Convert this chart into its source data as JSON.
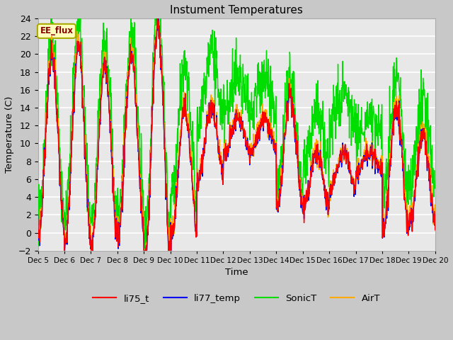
{
  "title": "Instument Temperatures",
  "xlabel": "Time",
  "ylabel": "Temperature (C)",
  "ylim": [
    -2,
    24
  ],
  "annotation_text": "EE_flux",
  "x_tick_labels": [
    "Dec 5",
    "Dec 6",
    "Dec 7",
    "Dec 8",
    "Dec 9",
    "Dec 10",
    "Dec 11",
    "Dec 12",
    "Dec 13",
    "Dec 14",
    "Dec 15",
    "Dec 16",
    "Dec 17",
    "Dec 18",
    "Dec 19",
    "Dec 20"
  ],
  "colors": {
    "li75_t": "#ff0000",
    "li77_temp": "#0000ee",
    "SonicT": "#00dd00",
    "AirT": "#ffaa00"
  },
  "legend_labels": [
    "li75_t",
    "li77_temp",
    "SonicT",
    "AirT"
  ],
  "fig_bg_color": "#c8c8c8",
  "plot_bg_color": "#e8e8e8",
  "grid_color": "#ffffff",
  "figsize": [
    6.4,
    4.8
  ],
  "dpi": 100
}
